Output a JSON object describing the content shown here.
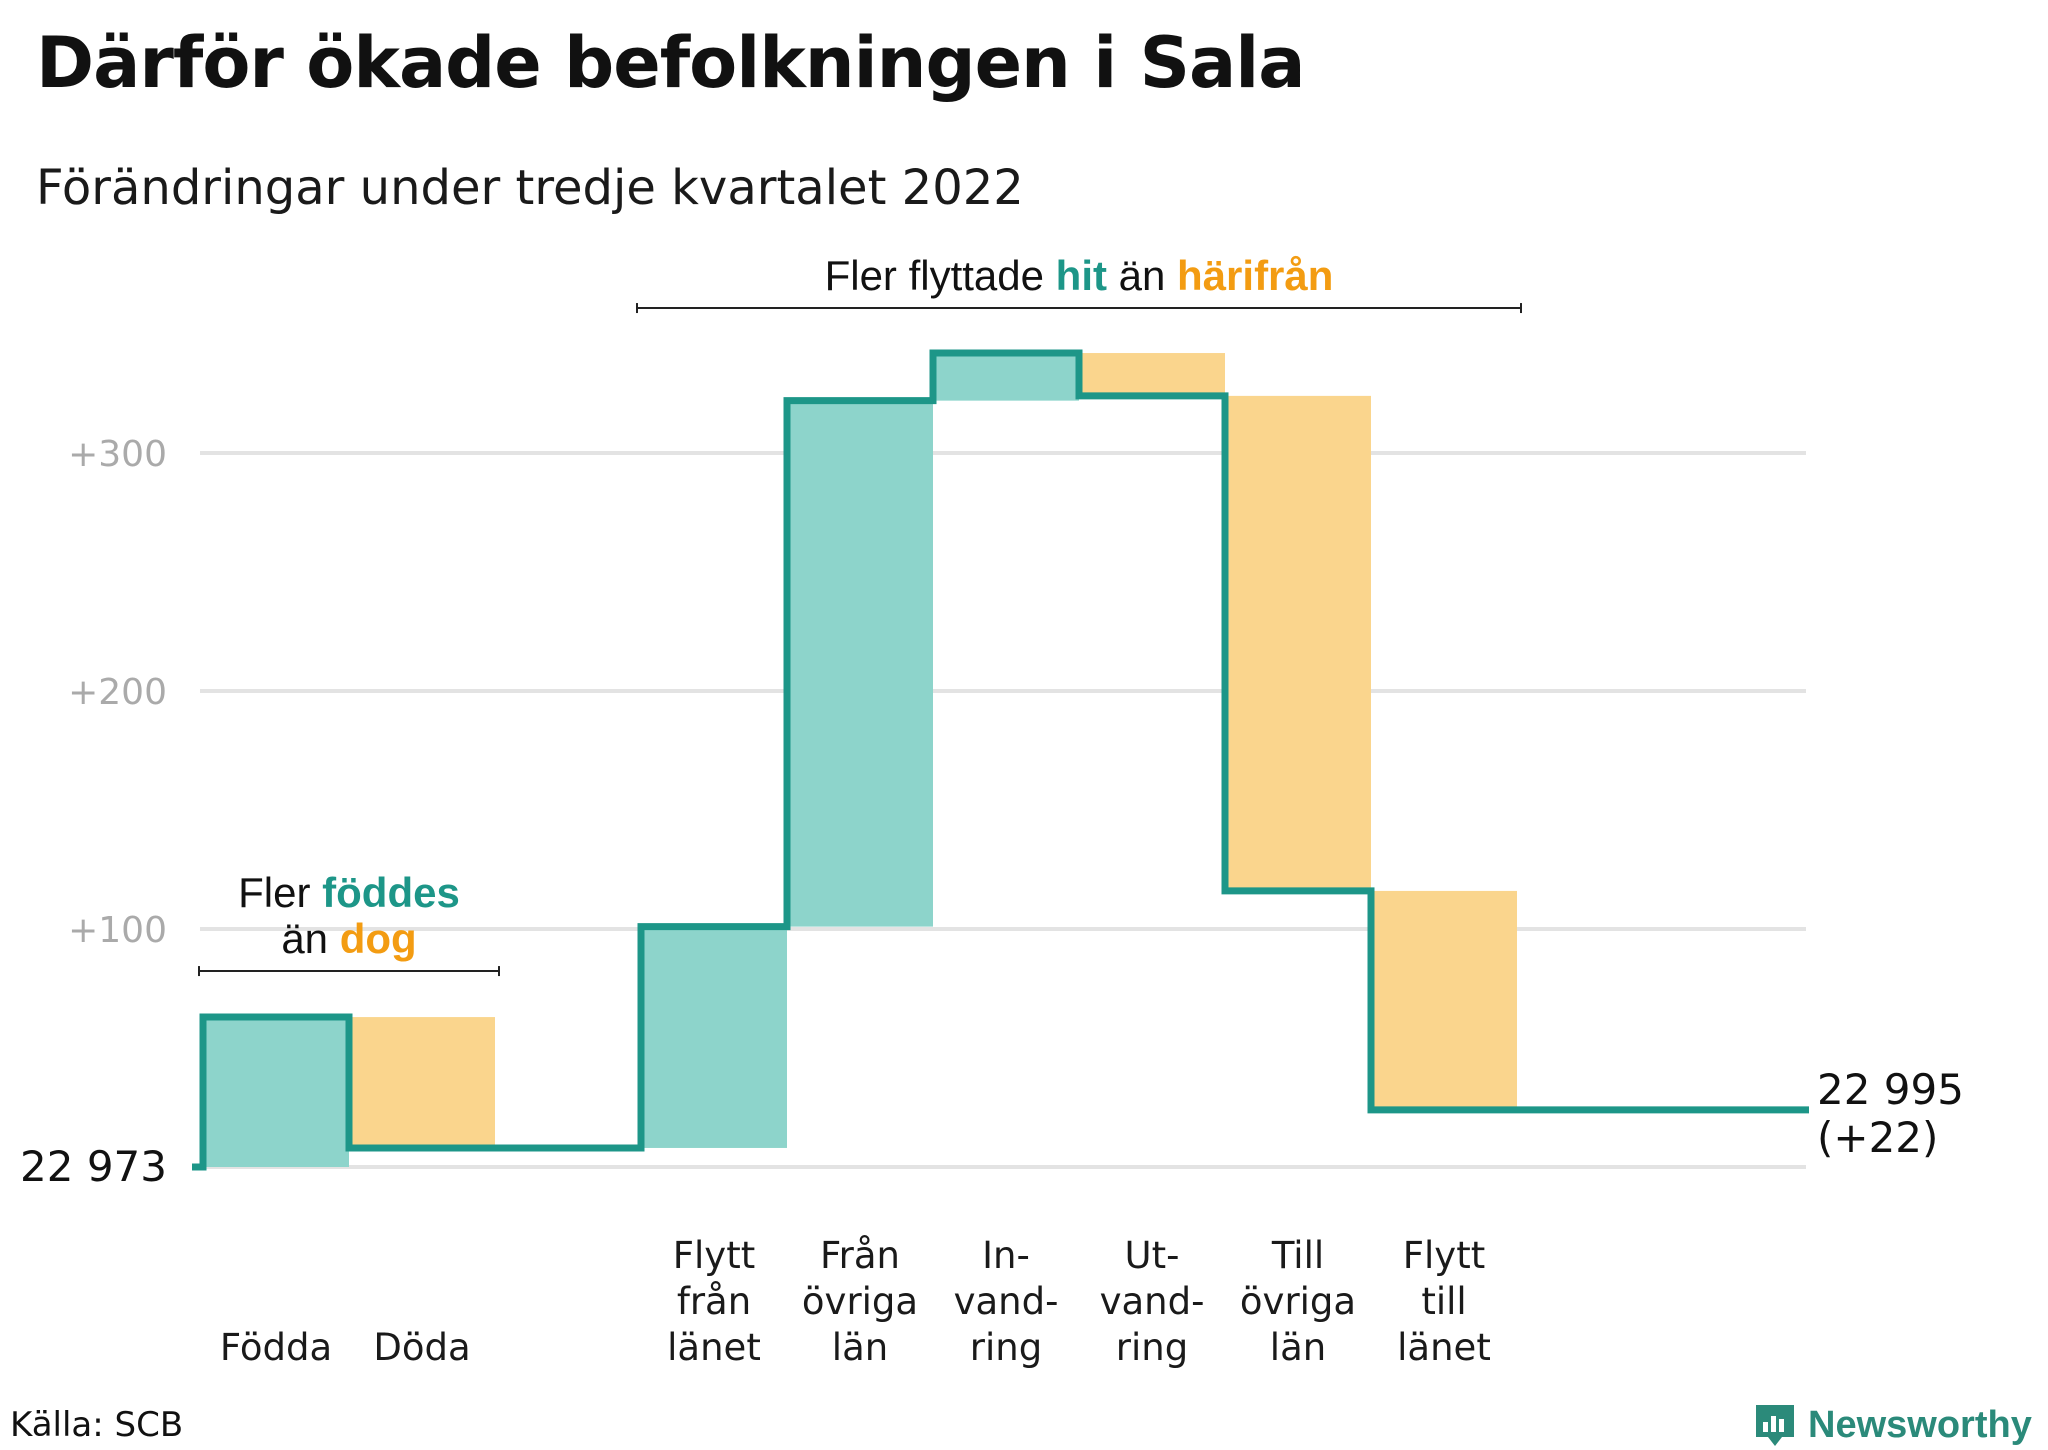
{
  "title": "Därför ökade befolkningen i Sala",
  "subtitle": "Förändringar under tredje kvartalet 2022",
  "source": "Källa: SCB",
  "brand": "Newsworthy",
  "colors": {
    "increase_fill": "#8dd4cb",
    "decrease_fill": "#fad58d",
    "line": "#1d9688",
    "grid": "#e3e3e3",
    "tick": "#aaaaaa",
    "teal_text": "#1d9688",
    "orange_text": "#f39c12"
  },
  "chart_data": {
    "type": "waterfall",
    "start": {
      "value": 22973,
      "label": "22 973"
    },
    "end": {
      "value": 22995,
      "label": "22 995",
      "change_label": "(+22)"
    },
    "y_ticks": [
      {
        "value": 100,
        "label": "+100"
      },
      {
        "value": 200,
        "label": "+200"
      },
      {
        "value": 300,
        "label": "+300"
      }
    ],
    "ylim": [
      0,
      345
    ],
    "steps": [
      {
        "label": [
          "Födda"
        ],
        "delta": 63,
        "kind": "increase"
      },
      {
        "label": [
          "Döda"
        ],
        "delta": -55,
        "kind": "decrease"
      },
      {
        "label": [],
        "delta": 0,
        "kind": "gap"
      },
      {
        "label": [
          "Flytt",
          "från",
          "länet"
        ],
        "delta": 93,
        "kind": "increase"
      },
      {
        "label": [
          "Från",
          "övriga",
          "län"
        ],
        "delta": 221,
        "kind": "increase"
      },
      {
        "label": [
          "In-",
          "vand-",
          "ring"
        ],
        "delta": 20,
        "kind": "increase"
      },
      {
        "label": [
          "Ut-",
          "vand-",
          "ring"
        ],
        "delta": -18,
        "kind": "decrease"
      },
      {
        "label": [
          "Till",
          "övriga",
          "län"
        ],
        "delta": -208,
        "kind": "decrease"
      },
      {
        "label": [
          "Flytt",
          "till",
          "länet"
        ],
        "delta": -92,
        "kind": "decrease"
      },
      {
        "label": [],
        "delta": 0,
        "kind": "gap"
      },
      {
        "label": [],
        "delta": 0,
        "kind": "gap"
      }
    ],
    "annotations": [
      {
        "lines": [
          [
            {
              "text": "Fler ",
              "style": "plain"
            },
            {
              "text": "föddes",
              "style": "teal"
            }
          ],
          [
            {
              "text": "än ",
              "style": "plain"
            },
            {
              "text": "dog",
              "style": "orange"
            }
          ]
        ],
        "from_step": 0,
        "to_step": 1
      },
      {
        "lines": [
          [
            {
              "text": "Fler flyttade ",
              "style": "plain"
            },
            {
              "text": "hit",
              "style": "teal"
            },
            {
              "text": " än ",
              "style": "plain"
            },
            {
              "text": "härifrån",
              "style": "orange"
            }
          ]
        ],
        "from_step": 3,
        "to_step": 8
      }
    ]
  }
}
